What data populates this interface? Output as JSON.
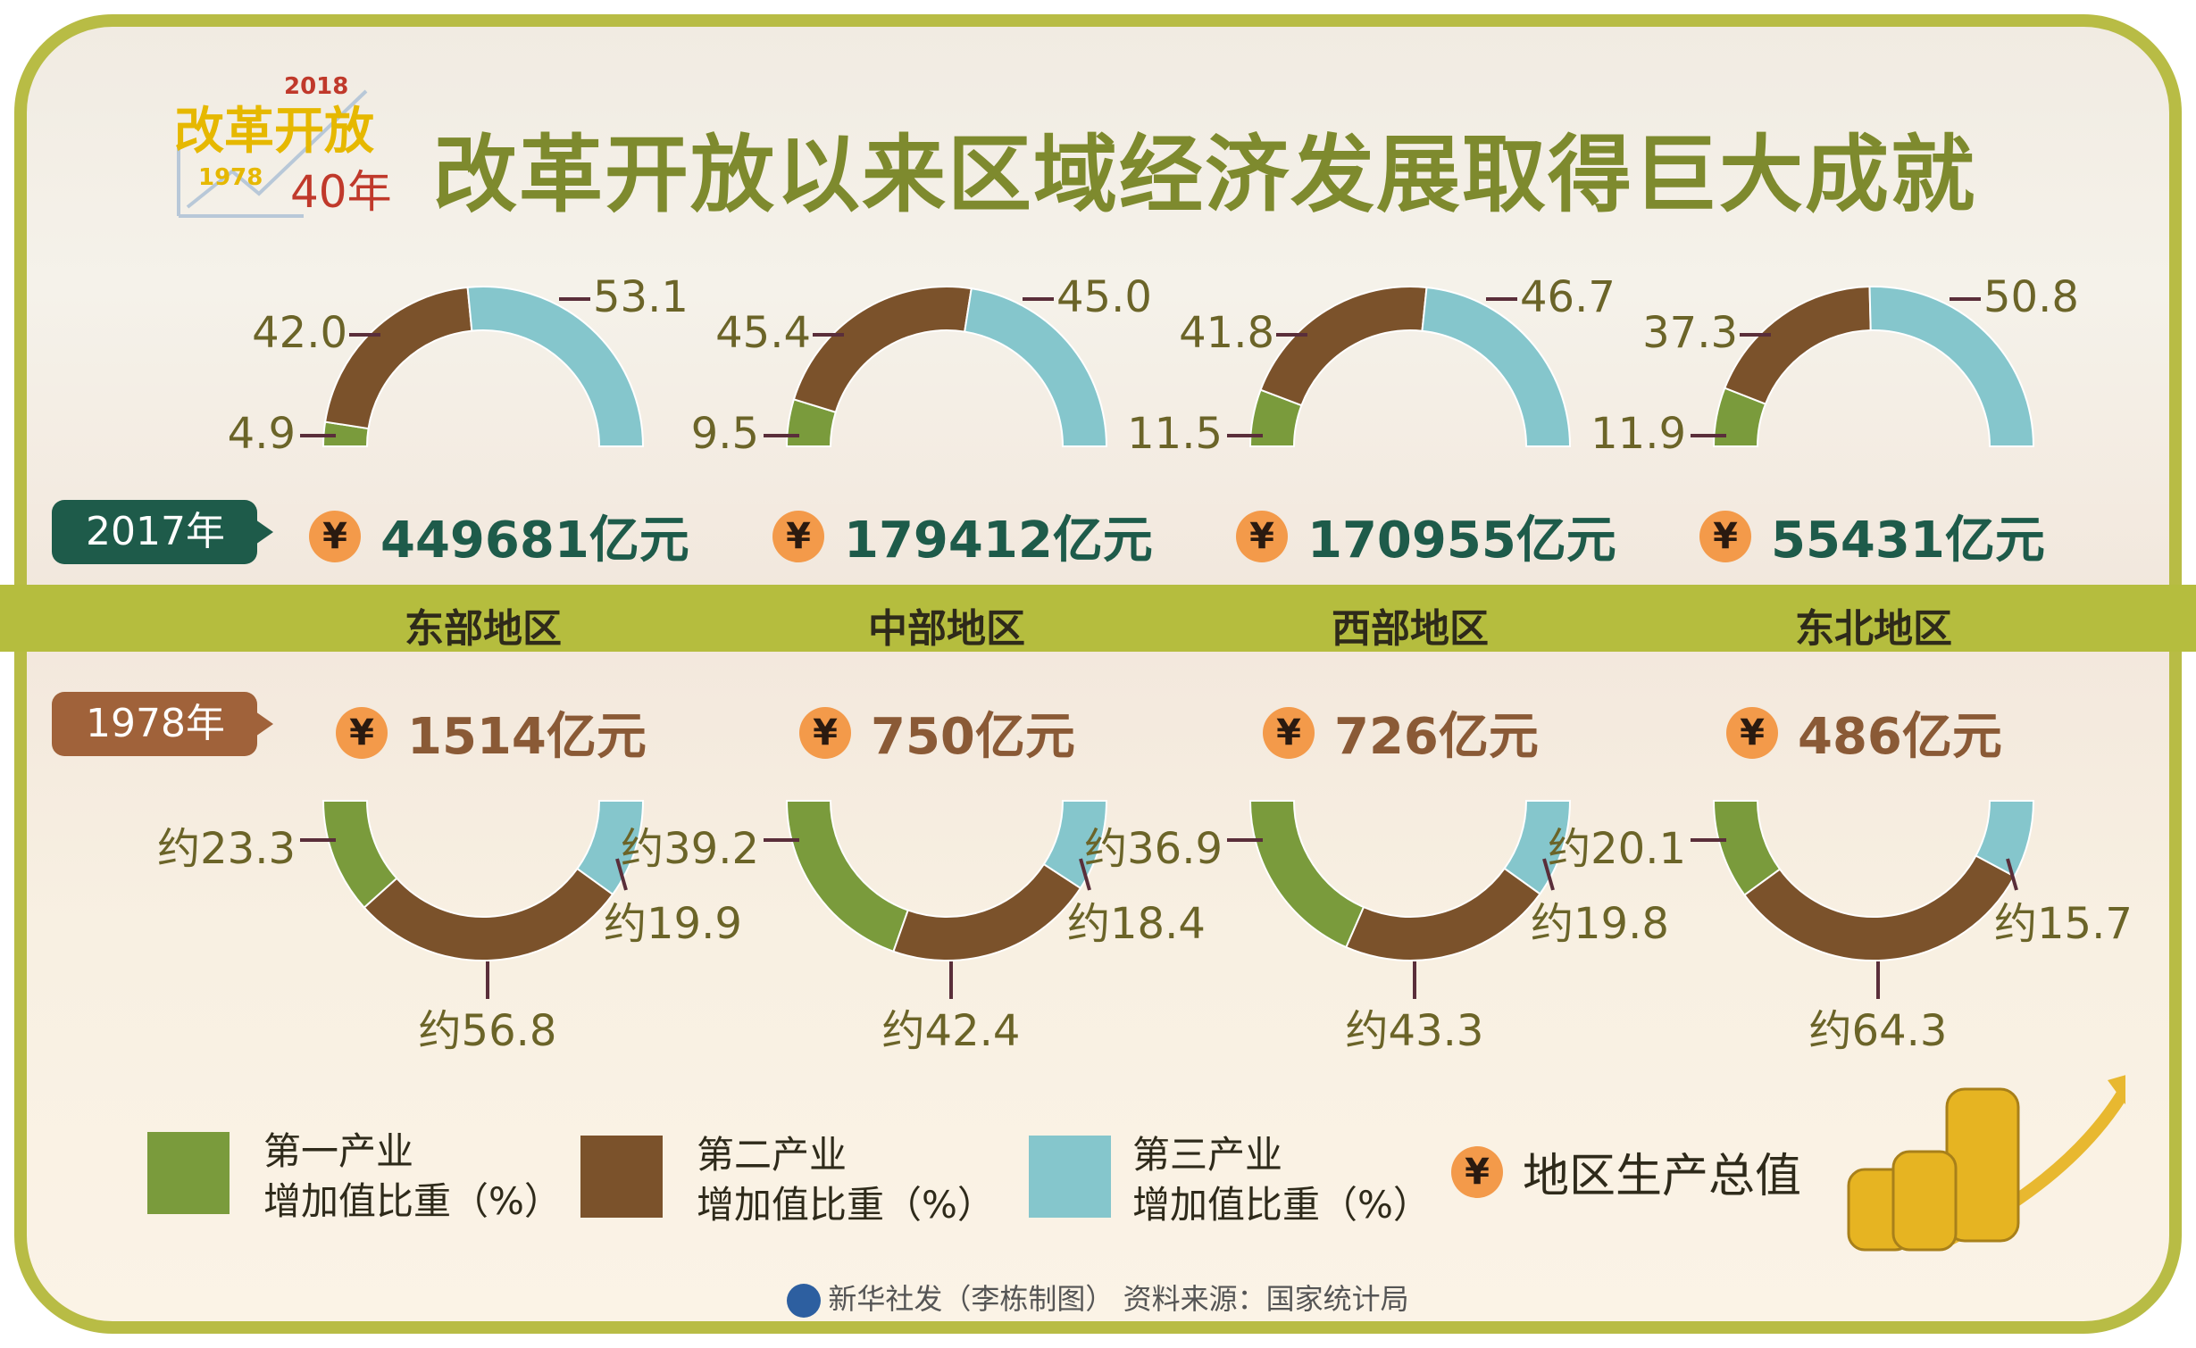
{
  "header": {
    "title": "改革开放以来区域经济发展取得巨大成就",
    "logo_text": "改革开放",
    "logo_year_new": "2018",
    "logo_year_old": "1978",
    "logo_anniv": "40年"
  },
  "badges": {
    "y2017": "2017年",
    "y1978": "1978年"
  },
  "colors": {
    "primary": "#7a9b3c",
    "secondary": "#7b522b",
    "tertiary": "#85c6cc",
    "band": "#b5bd3e"
  },
  "yuan_symbol": "¥",
  "legend": [
    {
      "line1": "第一产业",
      "line2": "增加值比重（%）"
    },
    {
      "line1": "第二产业",
      "line2": "增加值比重（%）"
    },
    {
      "line1": "第三产业",
      "line2": "增加值比重（%）"
    },
    {
      "line1": "地区生产总值"
    }
  ],
  "footer": "新华社发（李栋制图） 资料来源：国家统计局",
  "chart_data": {
    "type": "donut",
    "title": "改革开放以来区域经济发展取得巨大成就",
    "series_names": [
      "第一产业增加值比重（%）",
      "第二产业增加值比重（%）",
      "第三产业增加值比重（%）"
    ],
    "regions": [
      {
        "name": "东部地区",
        "gdp2017": "449681亿元",
        "shares2017": [
          4.9,
          42.0,
          53.1
        ],
        "labels2017": [
          "4.9",
          "42.0",
          "53.1"
        ],
        "gdp1978": "1514亿元",
        "shares1978": [
          23.3,
          56.8,
          19.9
        ],
        "labels1978": [
          "约23.3",
          "约56.8",
          "约19.9"
        ]
      },
      {
        "name": "中部地区",
        "gdp2017": "179412亿元",
        "shares2017": [
          9.5,
          45.4,
          45.0
        ],
        "labels2017": [
          "9.5",
          "45.4",
          "45.0"
        ],
        "gdp1978": "750亿元",
        "shares1978": [
          39.2,
          42.4,
          18.4
        ],
        "labels1978": [
          "约39.2",
          "约42.4",
          "约18.4"
        ]
      },
      {
        "name": "西部地区",
        "gdp2017": "170955亿元",
        "shares2017": [
          11.5,
          41.8,
          46.7
        ],
        "labels2017": [
          "11.5",
          "41.8",
          "46.7"
        ],
        "gdp1978": "726亿元",
        "shares1978": [
          36.9,
          43.3,
          19.8
        ],
        "labels1978": [
          "约36.9",
          "约43.3",
          "约19.8"
        ]
      },
      {
        "name": "东北地区",
        "gdp2017": "55431亿元",
        "shares2017": [
          11.9,
          37.3,
          50.8
        ],
        "labels2017": [
          "11.9",
          "37.3",
          "50.8"
        ],
        "gdp1978": "486亿元",
        "shares1978": [
          20.1,
          64.3,
          15.7
        ],
        "labels1978": [
          "约20.1",
          "约64.3",
          "约15.7"
        ]
      }
    ]
  }
}
